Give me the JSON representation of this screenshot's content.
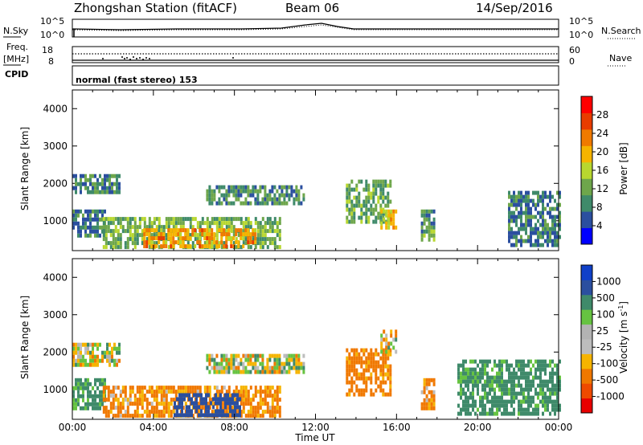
{
  "header": {
    "station": "Zhongshan Station (fitACF)",
    "beam": "Beam 06",
    "date": "14/Sep/2016"
  },
  "top_panels": {
    "nsky_label": "N.Sky",
    "nsearch_label": "N.Search",
    "noise_ticks": [
      "10^5",
      "10^0"
    ],
    "freq_label": "Freq.",
    "freq_unit": "[MHz]",
    "freq_ticks": [
      "18",
      "8"
    ],
    "nave_label": "Nave",
    "nave_ticks": [
      "60",
      "0"
    ],
    "cpid_label": "CPID",
    "cpid_text": "normal (fast stereo) 153"
  },
  "colors": {
    "power_scale": [
      "#0000ff",
      "#2b4f9f",
      "#3f8a6a",
      "#6ea64b",
      "#b8d72f",
      "#f6b400",
      "#f07a00",
      "#e83c00",
      "#ff0000"
    ],
    "velocity_scale": [
      "#e80000",
      "#ef4a00",
      "#f07800",
      "#f6b400",
      "#bdbdbd",
      "#b3b3b3",
      "#66c341",
      "#3f8a6a",
      "#2b4f9f",
      "#1040c8"
    ]
  },
  "chart_data": [
    {
      "type": "heatmap",
      "name": "power",
      "ylabel": "Slant Range [km]",
      "yticks": [
        "4000",
        "3000",
        "2000",
        "1000"
      ],
      "ylim": [
        200,
        4500
      ],
      "xlim": [
        "00:00",
        "24:00"
      ],
      "colorbar_label": "Power [dB]",
      "colorbar_ticks": [
        "28",
        "24",
        "20",
        "16",
        "12",
        "8",
        "4"
      ],
      "colorbar_range": [
        0,
        32
      ],
      "regions": [
        {
          "t0": 0.0,
          "t1": 2.3,
          "r0": 1750,
          "r1": 2250,
          "level": 10
        },
        {
          "t0": 0.0,
          "t1": 1.6,
          "r0": 600,
          "r1": 1300,
          "level": 9
        },
        {
          "t0": 1.5,
          "t1": 10.3,
          "r0": 300,
          "r1": 1100,
          "level": 14
        },
        {
          "t0": 3.5,
          "t1": 9.0,
          "r0": 300,
          "r1": 800,
          "level": 24
        },
        {
          "t0": 6.6,
          "t1": 11.4,
          "r0": 1500,
          "r1": 1950,
          "level": 11
        },
        {
          "t0": 13.5,
          "t1": 15.7,
          "r0": 1000,
          "r1": 2100,
          "level": 13
        },
        {
          "t0": 15.2,
          "t1": 16.0,
          "r0": 800,
          "r1": 1300,
          "level": 22
        },
        {
          "t0": 17.2,
          "t1": 17.8,
          "r0": 500,
          "r1": 1300,
          "level": 12
        },
        {
          "t0": 21.5,
          "t1": 24.0,
          "r0": 300,
          "r1": 1800,
          "level": 9
        }
      ]
    },
    {
      "type": "heatmap",
      "name": "velocity",
      "ylabel": "Slant Range [km]",
      "yticks": [
        "4000",
        "3000",
        "2000",
        "1000"
      ],
      "ylim": [
        200,
        4500
      ],
      "xlabel": "Time UT",
      "xticks": [
        "00:00",
        "04:00",
        "08:00",
        "12:00",
        "16:00",
        "20:00",
        "00:00"
      ],
      "colorbar_label": "Velocity [m s",
      "colorbar_unit_exp": "-1",
      "colorbar_ticks": [
        "1000",
        "500",
        "100",
        "25",
        "-25",
        "-100",
        "-500",
        "-1000"
      ],
      "regions": [
        {
          "t0": 0.0,
          "t1": 2.3,
          "r0": 1700,
          "r1": 2250,
          "vel": 0
        },
        {
          "t0": 0.0,
          "t1": 1.6,
          "r0": 500,
          "r1": 1300,
          "vel": 200
        },
        {
          "t0": 1.5,
          "t1": 10.3,
          "r0": 300,
          "r1": 1100,
          "vel": -150
        },
        {
          "t0": 5.0,
          "t1": 8.3,
          "r0": 300,
          "r1": 900,
          "vel": 700
        },
        {
          "t0": 6.6,
          "t1": 11.4,
          "r0": 1500,
          "r1": 1950,
          "vel": 0
        },
        {
          "t0": 13.5,
          "t1": 15.7,
          "r0": 900,
          "r1": 2100,
          "vel": -200
        },
        {
          "t0": 15.2,
          "t1": 16.0,
          "r0": 2000,
          "r1": 2600,
          "vel": 0
        },
        {
          "t0": 17.2,
          "t1": 17.8,
          "r0": 500,
          "r1": 1300,
          "vel": -150
        },
        {
          "t0": 19.0,
          "t1": 24.0,
          "r0": 300,
          "r1": 1800,
          "vel": 200
        }
      ]
    }
  ]
}
